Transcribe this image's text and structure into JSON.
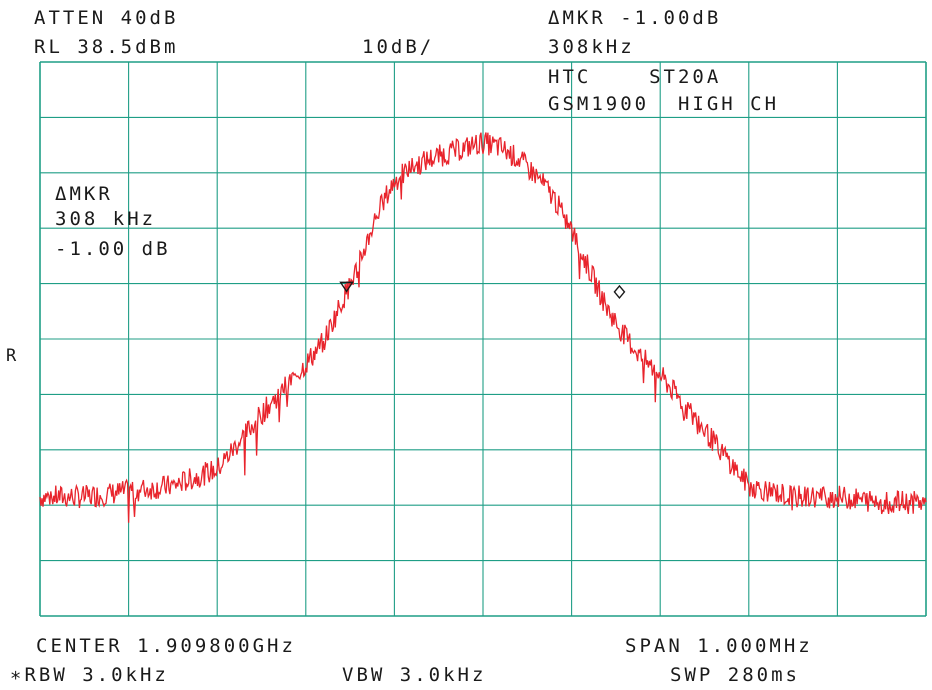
{
  "header": {
    "atten": "ATTEN 40dB",
    "ref_level": "RL 38.5dBm",
    "scale": "10dB/",
    "marker_delta_label": "ΔMKR -1.00dB",
    "marker_delta_freq": "308kHz",
    "device_line1": "HTC    ST20A",
    "device_line2": "GSM1900  HIGH CH"
  },
  "marker_box": {
    "label": "ΔMKR",
    "freq": "308 kHz",
    "value": "-1.00 dB"
  },
  "side_label": "R",
  "footer": {
    "center": "CENTER 1.909800GHz",
    "span": "SPAN 1.000MHz",
    "rbw": "∗RBW 3.0kHz",
    "vbw": "VBW 3.0kHz",
    "sweep": "SWP 280ms"
  },
  "colors": {
    "grid": "#1f9e86",
    "trace": "#e8242c",
    "text": "#1a1a1a"
  },
  "chart_data": {
    "type": "line",
    "x_unit": "MHz offset from center",
    "y_unit": "dB",
    "xlim": [
      -0.5,
      0.5
    ],
    "ylim": [
      -61.5,
      38.5
    ],
    "grid": true,
    "grid_divisions": {
      "x": 10,
      "y": 10
    },
    "series": [
      {
        "values_note": "",
        "x": [
          -0.5,
          -0.45,
          -0.4,
          -0.35,
          -0.3,
          -0.25,
          -0.2,
          -0.18,
          -0.16,
          -0.14,
          -0.12,
          -0.1,
          -0.08,
          -0.06,
          -0.04,
          -0.02,
          0.0,
          0.02,
          0.04,
          0.06,
          0.08,
          0.1,
          0.12,
          0.14,
          0.16,
          0.18,
          0.2,
          0.25,
          0.3,
          0.35,
          0.4,
          0.45,
          0.5
        ],
        "y": [
          -40,
          -40,
          -39,
          -38,
          -35,
          -25,
          -16,
          -12,
          -5,
          2,
          11,
          17,
          19.5,
          21,
          22,
          23,
          24,
          23,
          21,
          18,
          14,
          8,
          1,
          -6,
          -11,
          -15,
          -18,
          -28,
          -38,
          -40,
          -40,
          -41,
          -41
        ]
      }
    ],
    "markers": [
      {
        "symbol": "triangle",
        "x": -0.154,
        "y": -2
      },
      {
        "symbol": "diamond",
        "x": 0.154,
        "y": -3
      }
    ]
  }
}
